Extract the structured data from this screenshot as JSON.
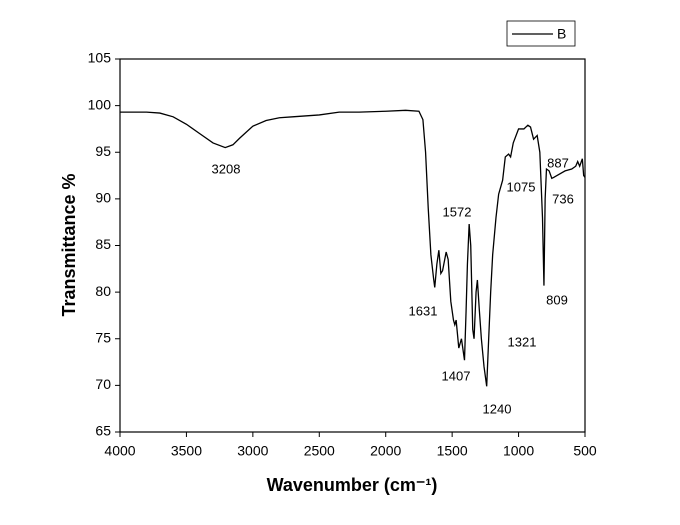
{
  "chart_data": {
    "type": "line",
    "xlabel": "Wavenumber (cm⁻¹)",
    "ylabel": "Transmittance %",
    "xlim": [
      4000,
      500
    ],
    "ylim": [
      65,
      105
    ],
    "xticks": [
      4000,
      3500,
      3000,
      2500,
      2000,
      1500,
      1000,
      500
    ],
    "yticks": [
      65,
      70,
      75,
      80,
      85,
      90,
      95,
      100,
      105
    ],
    "legend": "upper right",
    "annotations": [
      "3208",
      "1631",
      "1572",
      "1407",
      "1321",
      "1240",
      "1075",
      "887",
      "809",
      "736"
    ],
    "x": [
      4000,
      3900,
      3800,
      3700,
      3600,
      3500,
      3400,
      3300,
      3208,
      3150,
      3100,
      3000,
      2900,
      2800,
      2700,
      2500,
      2350,
      2200,
      2000,
      1850,
      1750,
      1720,
      1700,
      1680,
      1660,
      1640,
      1631,
      1615,
      1600,
      1585,
      1572,
      1545,
      1530,
      1510,
      1490,
      1480,
      1470,
      1450,
      1430,
      1407,
      1395,
      1385,
      1372,
      1360,
      1345,
      1335,
      1320,
      1310,
      1295,
      1280,
      1260,
      1240,
      1225,
      1210,
      1195,
      1170,
      1150,
      1120,
      1100,
      1075,
      1060,
      1040,
      1000,
      960,
      930,
      910,
      887,
      860,
      840,
      820,
      809,
      800,
      790,
      770,
      750,
      736,
      700,
      650,
      600,
      570,
      555,
      540,
      520,
      510,
      500
    ],
    "series": [
      {
        "name": "B",
        "color": "#000000",
        "values": [
          99.3,
          99.3,
          99.3,
          99.2,
          98.8,
          98.0,
          97.0,
          96.0,
          95.5,
          95.8,
          96.5,
          97.8,
          98.4,
          98.7,
          98.8,
          99.0,
          99.3,
          99.3,
          99.4,
          99.5,
          99.4,
          98.5,
          95,
          89,
          84,
          81.5,
          80.5,
          83,
          84.5,
          82,
          82.3,
          84.3,
          83.5,
          79,
          77,
          76.5,
          77,
          74,
          75,
          72.7,
          78,
          83,
          87.3,
          85,
          76,
          75,
          80,
          81.3,
          78,
          75,
          72,
          69.9,
          75,
          80,
          84,
          88,
          90.5,
          92,
          94.5,
          94.8,
          94.5,
          96,
          97.5,
          97.5,
          97.9,
          97.7,
          96.4,
          96.8,
          95,
          88,
          80.7,
          90,
          93.2,
          93,
          92.2,
          92.3,
          92.6,
          93,
          93.2,
          93.5,
          94,
          93.5,
          94.3,
          92.5,
          92.3
        ]
      }
    ]
  }
}
